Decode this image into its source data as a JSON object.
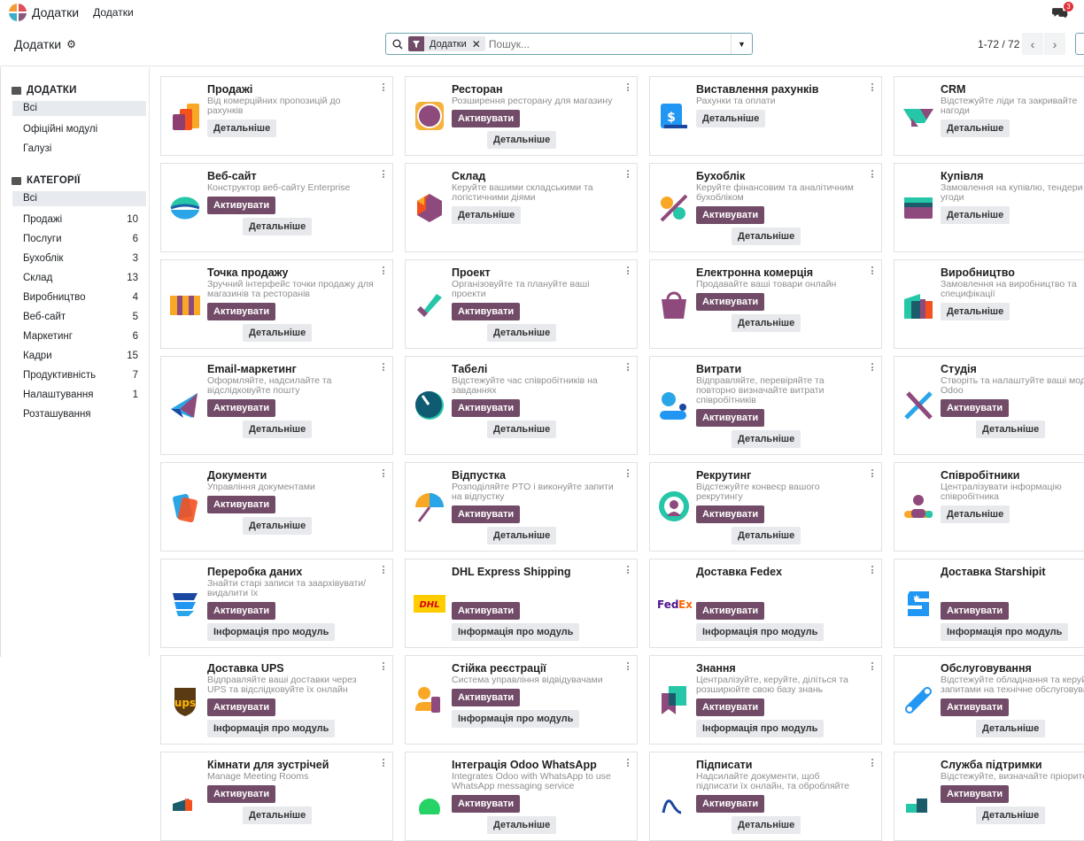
{
  "navbar": {
    "app_name": "Додатки",
    "menu_item": "Додатки",
    "chat_badge": "3"
  },
  "control_panel": {
    "breadcrumb": "Додатки",
    "search_facet": "Додатки",
    "search_placeholder": "Пошук...",
    "pager": "1-72 / 72"
  },
  "colors": {
    "accent": "#714B67",
    "secondary_button": "#E7E9ED",
    "search_border": "#71A5B0"
  },
  "sidebar": {
    "section1": {
      "title": "ДОДАТКИ",
      "items": [
        {
          "label": "Всі",
          "selected": true
        },
        {
          "label": "Офіційні модулі"
        },
        {
          "label": "Галузі"
        }
      ]
    },
    "section2": {
      "title": "КАТЕГОРІЇ",
      "items": [
        {
          "label": "Всі",
          "selected": true,
          "count": ""
        },
        {
          "label": "Продажі",
          "count": "10"
        },
        {
          "label": "Послуги",
          "count": "6"
        },
        {
          "label": "Бухоблік",
          "count": "3"
        },
        {
          "label": "Склад",
          "count": "13"
        },
        {
          "label": "Виробництво",
          "count": "4"
        },
        {
          "label": "Веб-сайт",
          "count": "5"
        },
        {
          "label": "Маркетинг",
          "count": "6"
        },
        {
          "label": "Кадри",
          "count": "15"
        },
        {
          "label": "Продуктивність",
          "count": "7"
        },
        {
          "label": "Налаштування",
          "count": "1"
        },
        {
          "label": "Розташування",
          "count": ""
        }
      ]
    }
  },
  "buttons": {
    "activate": "Активувати",
    "details": "Детальніше",
    "module_info": "Інформація про модуль"
  },
  "cards": [
    {
      "title": "Продажі",
      "desc": "Від комерційних пропозицій до рахунків",
      "icon": "sales-icon",
      "activate": false,
      "secondary": "details"
    },
    {
      "title": "Ресторан",
      "desc": "Розширення ресторану для магазину",
      "icon": "restaurant-icon",
      "activate": true,
      "secondary": "details"
    },
    {
      "title": "Виставлення рахунків",
      "desc": "Рахунки та оплати",
      "icon": "invoicing-icon",
      "activate": false,
      "secondary": "details"
    },
    {
      "title": "CRM",
      "desc": "Відстежуйте ліди та закривайте нагоди",
      "icon": "crm-icon",
      "activate": false,
      "secondary": "details"
    },
    {
      "title": "Веб-сайт",
      "desc": "Конструктор веб-сайту Enterprise",
      "icon": "website-icon",
      "activate": true,
      "secondary": "details"
    },
    {
      "title": "Склад",
      "desc": "Керуйте вашими складськими та логістичними діями",
      "icon": "inventory-icon",
      "activate": false,
      "secondary": "details"
    },
    {
      "title": "Бухоблік",
      "desc": "Керуйте фінансовим та аналітичним бухобліком",
      "icon": "accounting-icon",
      "activate": true,
      "secondary": "details"
    },
    {
      "title": "Купівля",
      "desc": "Замовлення на купівлю, тендери та угоди",
      "icon": "purchase-icon",
      "activate": false,
      "secondary": "details"
    },
    {
      "title": "Точка продажу",
      "desc": "Зручний інтерфейс точки продажу для магазинів та ресторанів",
      "icon": "pos-icon",
      "activate": true,
      "secondary": "details"
    },
    {
      "title": "Проект",
      "desc": "Організовуйте та плануйте ваші проекти",
      "icon": "project-icon",
      "activate": true,
      "secondary": "details"
    },
    {
      "title": "Електронна комерція",
      "desc": "Продавайте ваші товари онлайн",
      "icon": "ecommerce-icon",
      "activate": true,
      "secondary": "details"
    },
    {
      "title": "Виробництво",
      "desc": "Замовлення на виробництво та специфікації",
      "icon": "manufacturing-icon",
      "activate": false,
      "secondary": "details"
    },
    {
      "title": "Email-маркетинг",
      "desc": "Оформляйте, надсилайте та відслідковуйте пошту",
      "icon": "email-marketing-icon",
      "activate": true,
      "secondary": "details"
    },
    {
      "title": "Табелі",
      "desc": "Відстежуйте час співробітників на завданнях",
      "icon": "timesheets-icon",
      "activate": true,
      "secondary": "details"
    },
    {
      "title": "Витрати",
      "desc": "Відправляйте, перевіряйте та повторно визначайте витрати співробітників",
      "icon": "expenses-icon",
      "activate": true,
      "secondary": "details"
    },
    {
      "title": "Студія",
      "desc": "Створіть та налаштуйте ваші модулі Odoo",
      "icon": "studio-icon",
      "activate": true,
      "secondary": "details"
    },
    {
      "title": "Документи",
      "desc": "Управління документами",
      "icon": "documents-icon",
      "activate": true,
      "secondary": "details"
    },
    {
      "title": "Відпустка",
      "desc": "Розподіляйте PTO і виконуйте запити на відпустку",
      "icon": "time-off-icon",
      "activate": true,
      "secondary": "details"
    },
    {
      "title": "Рекрутинг",
      "desc": "Відстежуйте конвеєр вашого рекрутингу",
      "icon": "recruitment-icon",
      "activate": true,
      "secondary": "details"
    },
    {
      "title": "Співробітники",
      "desc": "Централізувати інформацію співробітника",
      "icon": "employees-icon",
      "activate": false,
      "secondary": "details"
    },
    {
      "title": "Переробка даних",
      "desc": "Знайти старі записи та заархівувати/видалити їх",
      "icon": "data-recycle-icon",
      "activate": true,
      "secondary": "module_info"
    },
    {
      "title": "DHL Express Shipping",
      "desc": "",
      "icon": "dhl-icon",
      "activate": true,
      "secondary": "module_info"
    },
    {
      "title": "Доставка Fedex",
      "desc": "",
      "icon": "fedex-icon",
      "activate": true,
      "secondary": "module_info"
    },
    {
      "title": "Доставка Starshipit",
      "desc": "",
      "icon": "starshipit-icon",
      "activate": true,
      "secondary": "module_info"
    },
    {
      "title": "Доставка UPS",
      "desc": "Відправляйте ваші доставки через UPS та відслідковуйте їх онлайн",
      "icon": "ups-icon",
      "activate": true,
      "secondary": "module_info"
    },
    {
      "title": "Стійка реєстрації",
      "desc": "Система управління відвідувачами",
      "icon": "frontdesk-icon",
      "activate": true,
      "secondary": "module_info"
    },
    {
      "title": "Знання",
      "desc": "Централізуйте, керуйте, діліться та розширюйте свою базу знань",
      "icon": "knowledge-icon",
      "activate": true,
      "secondary": "module_info"
    },
    {
      "title": "Обслуговування",
      "desc": "Відстежуйте обладнання та керуйте запитами на технічне обслуговування",
      "icon": "maintenance-icon",
      "activate": true,
      "secondary": "details"
    },
    {
      "title": "Кімнати для зустрічей",
      "desc": "Manage Meeting Rooms",
      "icon": "meeting-rooms-icon",
      "activate": true,
      "secondary": "details"
    },
    {
      "title": "Інтеграція Odoo WhatsApp",
      "desc": "Integrates Odoo with WhatsApp to use WhatsApp messaging service",
      "icon": "whatsapp-icon",
      "activate": true,
      "secondary": "details"
    },
    {
      "title": "Підписати",
      "desc": "Надсилайте документи, щоб підписати їх онлайн, та обробляйте",
      "icon": "sign-icon",
      "activate": true,
      "secondary": "details"
    },
    {
      "title": "Служба підтримки",
      "desc": "Відстежуйте, визначайте пріоритети",
      "icon": "helpdesk-icon",
      "activate": true,
      "secondary": "details"
    }
  ]
}
